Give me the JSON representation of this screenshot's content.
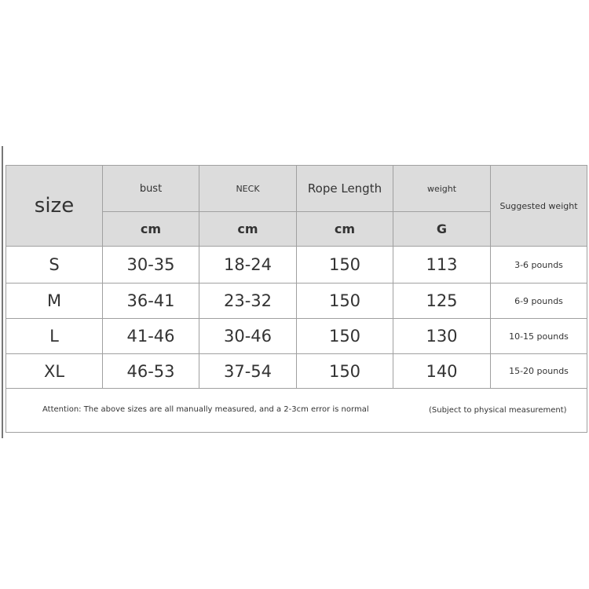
{
  "header": {
    "size": "size",
    "columns": [
      {
        "label": "bust",
        "unit": "cm"
      },
      {
        "label": "NECK",
        "unit": "cm"
      },
      {
        "label": "Rope Length",
        "unit": "cm"
      },
      {
        "label": "weight",
        "unit": "G"
      }
    ],
    "suggested": "Suggested weight"
  },
  "rows": [
    {
      "size": "S",
      "bust": "30-35",
      "neck": "18-24",
      "rope": "150",
      "weight": "113",
      "suggested": "3-6 pounds"
    },
    {
      "size": "M",
      "bust": "36-41",
      "neck": "23-32",
      "rope": "150",
      "weight": "125",
      "suggested": "6-9 pounds"
    },
    {
      "size": "L",
      "bust": "41-46",
      "neck": "30-46",
      "rope": "150",
      "weight": "130",
      "suggested": "10-15 pounds"
    },
    {
      "size": "XL",
      "bust": "46-53",
      "neck": "37-54",
      "rope": "150",
      "weight": "140",
      "suggested": "15-20 pounds"
    }
  ],
  "footer": {
    "attention": "Attention: The above sizes are all manually measured, and a 2-3cm error is normal",
    "note": "(Subject to physical measurement)"
  },
  "colors": {
    "header_bg": "#dcdcdc",
    "border": "#a0a0a0"
  }
}
